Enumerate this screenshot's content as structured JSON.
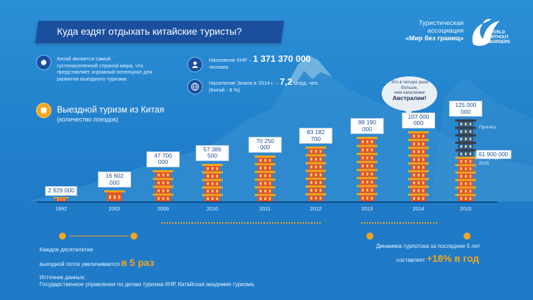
{
  "header": {
    "title": "Куда ездят отдыхать китайские туристы?",
    "assoc_line1": "Туристическая",
    "assoc_line2": "ассоциация",
    "assoc_name": "«Мир без границ»",
    "logo_text_1": "WORLD",
    "logo_text_2": "WITHOUT",
    "logo_text_3": "BORDERS"
  },
  "facts": {
    "china_text_1": "Китай является самой",
    "china_text_2": "густонаселенной страной мира, что",
    "china_text_3": "представляет огромный потенциал для",
    "china_text_4": "развития выездного туризма",
    "population_label": "Население КНР –",
    "population_value": "1 371 370 000",
    "population_unit": "человек",
    "earth_label": "Население Земли в 2014 г. –",
    "earth_value": "7,2",
    "earth_unit": "млрд. чел.",
    "earth_note": "(Китай - 8 %)"
  },
  "section": {
    "title": "Выездной туризм из Китая",
    "subtitle": "(количество поездок)"
  },
  "bubble": {
    "line1": "Это в четыре раза",
    "line2": "больше,",
    "line3": "чем население",
    "line4": "Австралии!"
  },
  "notes": {
    "forecast": "Прогноз",
    "half_year_1": "I полугодие",
    "half_year_2": "2015"
  },
  "bottom": {
    "decade_line1": "Каждое десятилетие",
    "decade_line2": "выездной поток увеличивается",
    "decade_value": "в 5 раз",
    "dyn_line1": "Динамика турпотока за последние 5 лет",
    "dyn_line2": "составляет",
    "dyn_value": "+18% в год",
    "source_line1": "Источник данных:",
    "source_line2": "Государственное управление по делам туризма КНР, Китайская академия туризма."
  },
  "colors": {
    "background": "#2b8fd6",
    "title_bar": "#1b4f9e",
    "tower": "#e0552a",
    "tower_roof": "#f4a51c",
    "accent_orange": "#f4a51c",
    "forecast_tower": "#2a5c93"
  },
  "chart_data": {
    "type": "bar",
    "title": "Выездной туризм из Китая",
    "subtitle": "(количество поездок)",
    "categories": [
      "1992",
      "2002",
      "2009",
      "2010",
      "2011",
      "2012",
      "2013",
      "2014",
      "2015"
    ],
    "values": [
      2929000,
      16602000,
      47700000,
      57386500,
      70250000,
      83182700,
      98190000,
      107000000,
      125000000
    ],
    "value_labels": [
      "2 929 000",
      "16 602 000",
      "47 700 000",
      "57 386 500",
      "70 250 000",
      "83 182 700",
      "98 190 000",
      "107 000 000",
      "125 000 000"
    ],
    "forecast_index": 8,
    "partial_value": 61900000,
    "partial_value_label": "61 900 000",
    "ylim": [
      0,
      125000000
    ]
  }
}
